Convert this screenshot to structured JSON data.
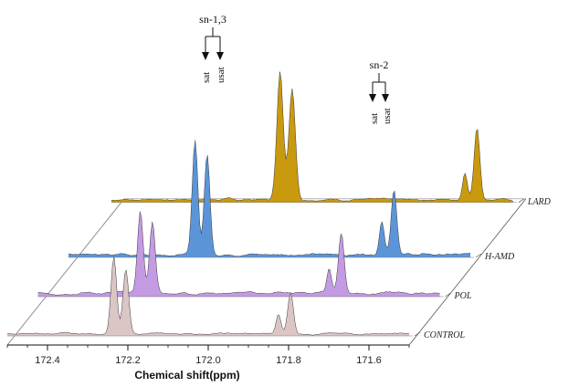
{
  "chart_data": {
    "type": "line",
    "chart_style": "3d-waterfall-stacked-spectra",
    "xlabel": "Chemical shift(ppm)",
    "x_range": [
      172.5,
      171.5
    ],
    "x_reversed": true,
    "x_ticks": [
      172.4,
      172.2,
      172.0,
      171.8,
      171.6
    ],
    "x_tick_labels": [
      "172.4",
      "172.2",
      "172.0",
      "171.8",
      "171.6"
    ],
    "grid": false,
    "series": [
      {
        "name": "CONTROL",
        "color": "#dcc5c5",
        "peaks": [
          {
            "x": 172.235,
            "h": 84,
            "w": 0.007
          },
          {
            "x": 172.205,
            "h": 70,
            "w": 0.007
          },
          {
            "x": 171.825,
            "h": 22,
            "w": 0.006
          },
          {
            "x": 171.795,
            "h": 45,
            "w": 0.007
          }
        ],
        "noise_amp": 3
      },
      {
        "name": "POL",
        "color": "#c49ae3",
        "peaks": [
          {
            "x": 172.245,
            "h": 90,
            "w": 0.007
          },
          {
            "x": 172.215,
            "h": 78,
            "w": 0.007
          },
          {
            "x": 171.775,
            "h": 28,
            "w": 0.006
          },
          {
            "x": 171.745,
            "h": 66,
            "w": 0.007
          }
        ],
        "noise_amp": 5
      },
      {
        "name": "H-AMD",
        "color": "#5b95d8",
        "peaks": [
          {
            "x": 172.185,
            "h": 125,
            "w": 0.007
          },
          {
            "x": 172.155,
            "h": 110,
            "w": 0.007
          },
          {
            "x": 171.72,
            "h": 38,
            "w": 0.006
          },
          {
            "x": 171.69,
            "h": 72,
            "w": 0.007
          }
        ],
        "noise_amp": 4
      },
      {
        "name": "LARD",
        "color": "#c9990e",
        "peaks": [
          {
            "x": 172.08,
            "h": 140,
            "w": 0.008
          },
          {
            "x": 172.05,
            "h": 122,
            "w": 0.008
          },
          {
            "x": 171.62,
            "h": 30,
            "w": 0.006
          },
          {
            "x": 171.59,
            "h": 80,
            "w": 0.007
          }
        ],
        "noise_amp": 4
      }
    ],
    "annotations": [
      {
        "label": "sn-1,3",
        "sub_labels": [
          "sat",
          "usat"
        ]
      },
      {
        "label": "sn-2",
        "sub_labels": [
          "sat",
          "usat"
        ]
      }
    ]
  }
}
